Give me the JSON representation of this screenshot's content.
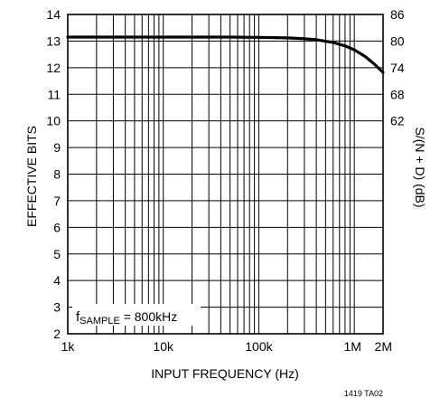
{
  "chart_data": {
    "type": "line",
    "xlabel": "INPUT FREQUENCY (Hz)",
    "ylabel": "EFFECTIVE BITS",
    "y2label": "S/(N + D) (dB)",
    "x_scale": "log",
    "xlim": [
      1000,
      2000000
    ],
    "ylim": [
      2,
      14
    ],
    "grid": true,
    "x_tick_labels": [
      {
        "value": 1000,
        "label": "1k"
      },
      {
        "value": 10000,
        "label": "10k"
      },
      {
        "value": 100000,
        "label": "100k"
      },
      {
        "value": 1000000,
        "label": "1M"
      },
      {
        "value": 2000000,
        "label": "2M"
      }
    ],
    "y_ticks": [
      2,
      3,
      4,
      5,
      6,
      7,
      8,
      9,
      10,
      11,
      12,
      13,
      14
    ],
    "y2_tick_labels": [
      {
        "at_bits": 14,
        "label": "86"
      },
      {
        "at_bits": 13,
        "label": "80"
      },
      {
        "at_bits": 12,
        "label": "74"
      },
      {
        "at_bits": 11,
        "label": "68"
      },
      {
        "at_bits": 10,
        "label": "62"
      }
    ],
    "series": [
      {
        "x": [
          1000,
          10000,
          50000,
          100000,
          200000,
          300000,
          400000,
          600000,
          800000,
          1000000,
          1300000,
          1600000,
          2000000
        ],
        "y": [
          13.15,
          13.15,
          13.15,
          13.14,
          13.12,
          13.09,
          13.05,
          12.95,
          12.82,
          12.67,
          12.42,
          12.15,
          11.82
        ]
      }
    ],
    "annotations": [
      {
        "text_prefix": "f",
        "text_subscript": "SAMPLE",
        "text_suffix": " = 800kHz"
      }
    ]
  },
  "figure_code": "1419 TA02"
}
